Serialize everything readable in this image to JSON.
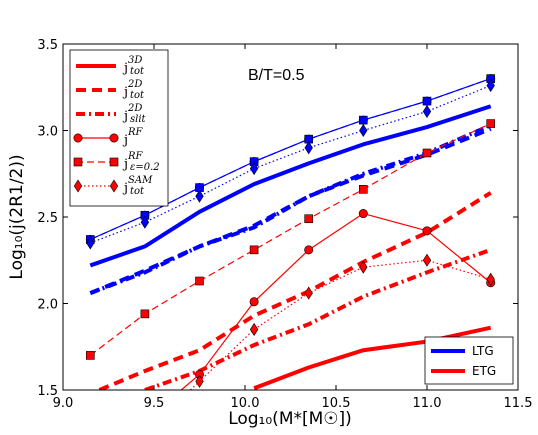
{
  "chart_data": {
    "type": "line",
    "annotation": "B/T=0.5",
    "xlabel": "Log₁₀(M*[M☉])",
    "ylabel": "Log₁₀(j(2R1/2))",
    "xlim": [
      9.0,
      11.5
    ],
    "ylim": [
      1.5,
      3.5
    ],
    "xticks": [
      "9.0",
      "9.5",
      "10.0",
      "10.5",
      "11.0",
      "11.5"
    ],
    "yticks": [
      "1.5",
      "2.0",
      "2.5",
      "3.0",
      "3.5"
    ],
    "grid": false,
    "colors": {
      "LTG": "#0000ff",
      "ETG": "#ff0000"
    },
    "legend_style": {
      "location": "top-left",
      "entries": [
        {
          "label": "j",
          "sup": "3D",
          "sub": "tot",
          "style": "solid-thick"
        },
        {
          "label": "j",
          "sup": "2D",
          "sub": "tot",
          "style": "dashed-thick"
        },
        {
          "label": "j",
          "sup": "2D",
          "sub": "slit",
          "style": "dashdot-thick"
        },
        {
          "label": "j",
          "sup": "RF",
          "sub": "",
          "style": "line-circle"
        },
        {
          "label": "j",
          "sup": "RF",
          "sub": "ε=0.2",
          "style": "dashed-square"
        },
        {
          "label": "j",
          "sup": "SAM",
          "sub": "tot",
          "style": "dotted-diamond"
        }
      ]
    },
    "legend_type": {
      "location": "bottom-right",
      "entries": [
        {
          "label": "LTG",
          "color": "#0000ff"
        },
        {
          "label": "ETG",
          "color": "#ff0000"
        }
      ]
    },
    "series": [
      {
        "galaxy": "LTG",
        "style": "solid-thick",
        "x": [
          9.15,
          9.45,
          9.75,
          10.05,
          10.35,
          10.65,
          11.0,
          11.35
        ],
        "y": [
          2.22,
          2.33,
          2.53,
          2.69,
          2.81,
          2.92,
          3.02,
          3.14
        ]
      },
      {
        "galaxy": "LTG",
        "style": "dashed-thick",
        "x": [
          9.15,
          9.45,
          9.75,
          10.05,
          10.35,
          10.65,
          11.0,
          11.35
        ],
        "y": [
          2.06,
          2.19,
          2.33,
          2.45,
          2.62,
          2.74,
          2.86,
          3.01
        ]
      },
      {
        "galaxy": "LTG",
        "style": "dashdot-thick",
        "x": [
          9.15,
          9.45,
          9.75,
          10.05,
          10.35,
          10.65,
          11.0,
          11.35
        ],
        "y": [
          2.06,
          2.18,
          2.33,
          2.44,
          2.62,
          2.75,
          2.87,
          3.03
        ]
      },
      {
        "galaxy": "LTG",
        "style": "line-circle",
        "x": [
          9.15,
          9.45,
          9.75,
          10.05,
          10.35,
          10.65,
          11.0,
          11.35
        ],
        "y": [
          2.37,
          2.51,
          2.67,
          2.82,
          2.95,
          3.06,
          3.17,
          3.3
        ]
      },
      {
        "galaxy": "LTG",
        "style": "dashed-square",
        "x": [
          9.15,
          9.45,
          9.75,
          10.05,
          10.35,
          10.65,
          11.0,
          11.35
        ],
        "y": [
          2.37,
          2.51,
          2.67,
          2.82,
          2.95,
          3.06,
          3.17,
          3.3
        ]
      },
      {
        "galaxy": "LTG",
        "style": "dotted-diamond",
        "x": [
          9.15,
          9.45,
          9.75,
          10.05,
          10.35,
          10.65,
          11.0,
          11.35
        ],
        "y": [
          2.35,
          2.47,
          2.62,
          2.78,
          2.9,
          3.0,
          3.11,
          3.26
        ]
      },
      {
        "galaxy": "ETG",
        "style": "solid-thick",
        "x": [
          10.05,
          10.35,
          10.65,
          11.0,
          11.35
        ],
        "y": [
          1.51,
          1.63,
          1.73,
          1.78,
          1.86
        ]
      },
      {
        "galaxy": "ETG",
        "style": "dashed-thick",
        "x": [
          9.2,
          9.45,
          9.75,
          10.05,
          10.35,
          10.65,
          11.0,
          11.35
        ],
        "y": [
          1.5,
          1.61,
          1.73,
          1.93,
          2.07,
          2.24,
          2.41,
          2.64
        ]
      },
      {
        "galaxy": "ETG",
        "style": "dashdot-thick",
        "x": [
          9.45,
          9.75,
          10.05,
          10.35,
          10.65,
          11.0,
          11.35
        ],
        "y": [
          1.5,
          1.61,
          1.76,
          1.88,
          2.04,
          2.18,
          2.31
        ]
      },
      {
        "galaxy": "ETG",
        "style": "line-circle",
        "x": [
          9.65,
          9.75,
          10.05,
          10.35,
          10.65,
          11.0,
          11.35
        ],
        "y": [
          1.5,
          1.59,
          2.01,
          2.31,
          2.52,
          2.42,
          2.12
        ]
      },
      {
        "galaxy": "ETG",
        "style": "dashed-square",
        "x": [
          9.15,
          9.45,
          9.75,
          10.05,
          10.35,
          10.65,
          11.0,
          11.35
        ],
        "y": [
          1.7,
          1.94,
          2.13,
          2.31,
          2.49,
          2.66,
          2.87,
          3.04
        ]
      },
      {
        "galaxy": "ETG",
        "style": "dotted-diamond",
        "x": [
          9.7,
          9.75,
          10.05,
          10.35,
          10.65,
          11.0,
          11.35
        ],
        "y": [
          1.5,
          1.55,
          1.85,
          2.06,
          2.21,
          2.25,
          2.14
        ]
      }
    ]
  }
}
